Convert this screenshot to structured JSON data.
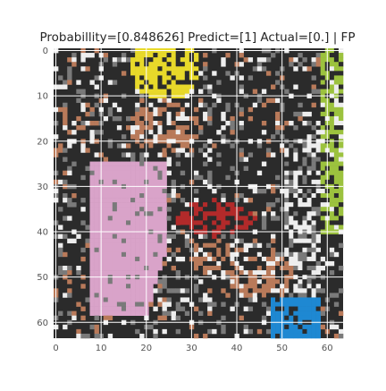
{
  "chart_data": {
    "type": "heatmap",
    "title": "Probabillity=[0.848626] Predict=[1] Actual=[0.] | FP",
    "xlabel": "",
    "ylabel": "",
    "xlim": [
      -0.5,
      63.5
    ],
    "ylim": [
      63.5,
      -0.5
    ],
    "x_ticks": [
      0,
      10,
      20,
      30,
      40,
      50,
      60
    ],
    "y_ticks": [
      0,
      10,
      20,
      30,
      40,
      50,
      60
    ],
    "x_tick_labels": [
      "0",
      "10",
      "20",
      "30",
      "40",
      "50",
      "60"
    ],
    "y_tick_labels": [
      "0",
      "10",
      "20",
      "30",
      "40",
      "50",
      "60"
    ],
    "grid": true,
    "image_size": [
      64,
      64
    ],
    "content": "RGB image patch (64x64 pixels) of a comic-style illustration; pixel values rendered as a raster",
    "probability": 0.848626,
    "predict": 1,
    "actual": 0.0,
    "result": "FP"
  },
  "colors": {
    "grid": "#ffffff",
    "tick_label": "#555555",
    "title": "#262626",
    "pink": "#d9a3c9",
    "yellow": "#e8d92a",
    "green": "#9cc23e",
    "blue": "#1e88d2",
    "red": "#b22a2a",
    "dark": "#2b2b2b",
    "skin": "#b97a5a",
    "white": "#eeeeee",
    "gray": "#7a7a7a"
  }
}
